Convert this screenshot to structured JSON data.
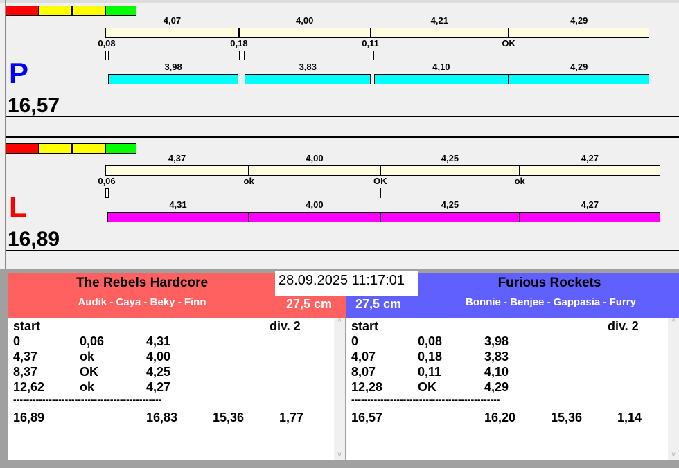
{
  "colors": {
    "red": "#ff0000",
    "yellow": "#ffff00",
    "green": "#00ff00",
    "track": "#fffde0",
    "p_bar": "#00ffff",
    "l_bar": "#ff00ff",
    "p_letter": "#0000ff",
    "l_letter": "#ff0000",
    "rebels_bg": "#ff6060",
    "rockets_bg": "#6060ff"
  },
  "lanes": [
    {
      "letter": "P",
      "total": "16,57",
      "bar_color": "#00ffff",
      "letter_color": "#0000ff",
      "track": [
        {
          "start": 0,
          "len": 4.07,
          "label": "4,07"
        },
        {
          "start": 4.07,
          "len": 4.0,
          "label": "4,00"
        },
        {
          "start": 8.07,
          "len": 4.21,
          "label": "4,21"
        },
        {
          "start": 12.28,
          "len": 4.29,
          "label": "4,29"
        }
      ],
      "gaps": [
        {
          "value": 0.08,
          "label": "0,08"
        },
        {
          "value": 0.18,
          "label": "0,18"
        },
        {
          "value": 0.11,
          "label": "0,11"
        },
        {
          "value": 0,
          "label": "OK"
        }
      ],
      "runs": [
        {
          "len": 3.98,
          "label": "3,98"
        },
        {
          "len": 3.83,
          "label": "3,83"
        },
        {
          "len": 4.1,
          "label": "4,10"
        },
        {
          "len": 4.29,
          "label": "4,29"
        }
      ]
    },
    {
      "letter": "L",
      "total": "16,89",
      "bar_color": "#ff00ff",
      "letter_color": "#ff0000",
      "track": [
        {
          "start": 0,
          "len": 4.37,
          "label": "4,37"
        },
        {
          "start": 4.37,
          "len": 4.0,
          "label": "4,00"
        },
        {
          "start": 8.37,
          "len": 4.25,
          "label": "4,25"
        },
        {
          "start": 12.62,
          "len": 4.27,
          "label": "4,27"
        }
      ],
      "gaps": [
        {
          "value": 0.06,
          "label": "0,06"
        },
        {
          "value": 0,
          "label": "ok"
        },
        {
          "value": 0,
          "label": "OK"
        },
        {
          "value": 0,
          "label": "ok"
        }
      ],
      "runs": [
        {
          "len": 4.31,
          "label": "4,31"
        },
        {
          "len": 4.0,
          "label": "4,00"
        },
        {
          "len": 4.25,
          "label": "4,25"
        },
        {
          "len": 4.27,
          "label": "4,27"
        }
      ]
    }
  ],
  "datetime": "28.09.2025 11:17:01",
  "teams": [
    {
      "name": "The Rebels Hardcore",
      "members": "Audik - Caya - Beky - Finn",
      "size": "27,5 cm",
      "start_label": "start",
      "div_label": "div.  2",
      "rows": [
        [
          "0",
          "0,06",
          "4,31"
        ],
        [
          "4,37",
          "ok",
          "4,00"
        ],
        [
          "8,37",
          "OK",
          "4,25"
        ],
        [
          "12,62",
          "ok",
          "4,27"
        ]
      ],
      "divider": "----------------------------------------------",
      "totals": [
        "16,89",
        "16,83",
        "15,36",
        "1,77"
      ]
    },
    {
      "name": "Furious Rockets",
      "members": "Bonnie - Benjee - Gappasia - Furry",
      "size": "27,5 cm",
      "start_label": "start",
      "div_label": "div.  2",
      "rows": [
        [
          "0",
          "0,08",
          "3,98"
        ],
        [
          "4,07",
          "0,18",
          "3,83"
        ],
        [
          "8,07",
          "0,11",
          "4,10"
        ],
        [
          "12,28",
          "OK",
          "4,29"
        ]
      ],
      "divider": "----------------------------------------------",
      "totals": [
        "16,57",
        "16,20",
        "15,36",
        "1,14"
      ]
    }
  ]
}
